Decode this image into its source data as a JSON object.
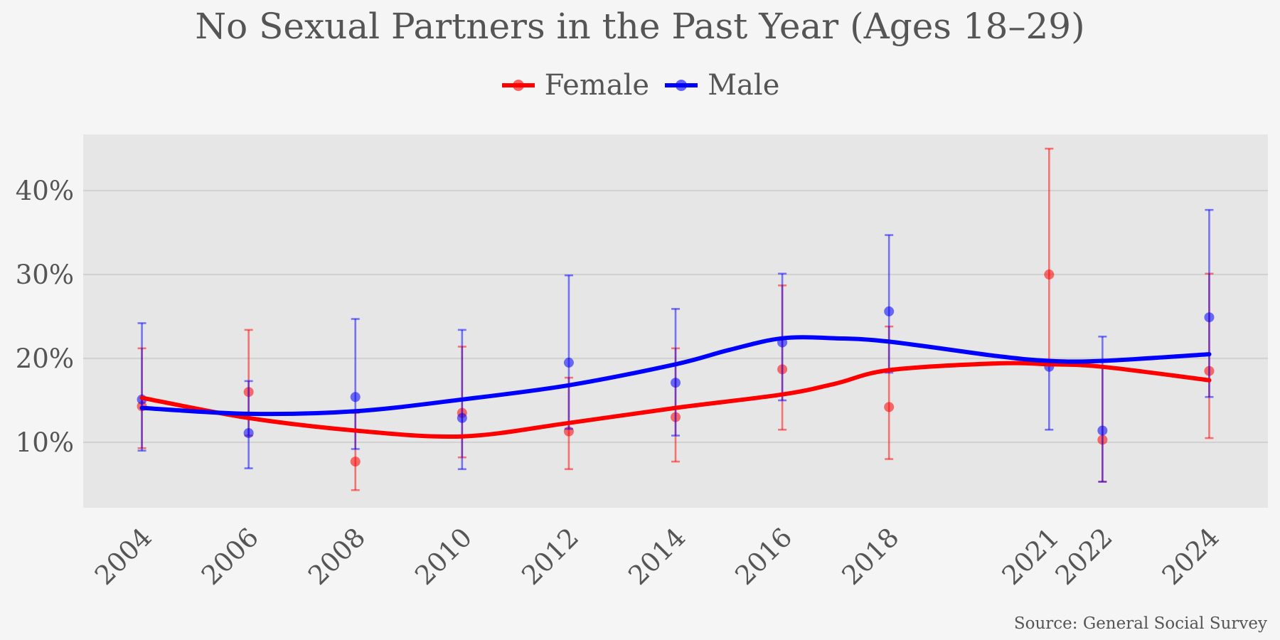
{
  "chart_data": {
    "type": "line",
    "title": "No Sexual Partners in the Past Year (Ages 18–29)",
    "xlabel": "",
    "ylabel": "",
    "source": "Source: General Social Survey",
    "legend_position": "top-center",
    "grid": true,
    "ylim": [
      0.022,
      0.467
    ],
    "y_ticks": [
      0.1,
      0.2,
      0.3,
      0.4
    ],
    "y_tick_labels": [
      "10%",
      "20%",
      "30%",
      "40%"
    ],
    "x_ticks": [
      2004,
      2006,
      2008,
      2010,
      2012,
      2014,
      2016,
      2018,
      2021,
      2022,
      2024
    ],
    "xlim": [
      2002.9,
      2025.1
    ],
    "series": [
      {
        "name": "Female",
        "color": "#ff0000",
        "x": [
          2004,
          2006,
          2008,
          2010,
          2012,
          2014,
          2016,
          2018,
          2021,
          2022,
          2024
        ],
        "values": [
          0.143,
          0.16,
          0.077,
          0.135,
          0.113,
          0.13,
          0.187,
          0.142,
          0.3,
          0.103,
          0.185
        ],
        "ci_low": [
          0.093,
          0.108,
          0.043,
          0.082,
          0.068,
          0.077,
          0.115,
          0.08,
          0.193,
          0.053,
          0.105
        ],
        "ci_high": [
          0.212,
          0.234,
          0.135,
          0.214,
          0.177,
          0.212,
          0.287,
          0.238,
          0.45,
          0.19,
          0.301
        ],
        "smooth": [
          [
            2004,
            0.153
          ],
          [
            2006,
            0.129
          ],
          [
            2008,
            0.114
          ],
          [
            2010,
            0.107
          ],
          [
            2012,
            0.123
          ],
          [
            2014,
            0.141
          ],
          [
            2016,
            0.157
          ],
          [
            2017,
            0.17
          ],
          [
            2018,
            0.186
          ],
          [
            2020,
            0.194
          ],
          [
            2021,
            0.193
          ],
          [
            2022,
            0.19
          ],
          [
            2024,
            0.174
          ]
        ]
      },
      {
        "name": "Male",
        "color": "#0000ff",
        "x": [
          2004,
          2006,
          2008,
          2010,
          2012,
          2014,
          2016,
          2018,
          2021,
          2022,
          2024
        ],
        "values": [
          0.151,
          0.111,
          0.154,
          0.129,
          0.195,
          0.171,
          0.219,
          0.256,
          0.19,
          0.114,
          0.249
        ],
        "ci_low": [
          0.09,
          0.069,
          0.092,
          0.068,
          0.116,
          0.108,
          0.15,
          0.183,
          0.115,
          0.053,
          0.154
        ],
        "ci_high": [
          0.242,
          0.173,
          0.247,
          0.234,
          0.299,
          0.259,
          0.301,
          0.347,
          0.198,
          0.226,
          0.377
        ],
        "smooth": [
          [
            2004,
            0.141
          ],
          [
            2006,
            0.134
          ],
          [
            2008,
            0.137
          ],
          [
            2010,
            0.151
          ],
          [
            2012,
            0.168
          ],
          [
            2014,
            0.193
          ],
          [
            2015,
            0.21
          ],
          [
            2016,
            0.224
          ],
          [
            2017,
            0.224
          ],
          [
            2018,
            0.22
          ],
          [
            2020,
            0.203
          ],
          [
            2021,
            0.197
          ],
          [
            2022,
            0.197
          ],
          [
            2024,
            0.205
          ]
        ]
      }
    ]
  }
}
